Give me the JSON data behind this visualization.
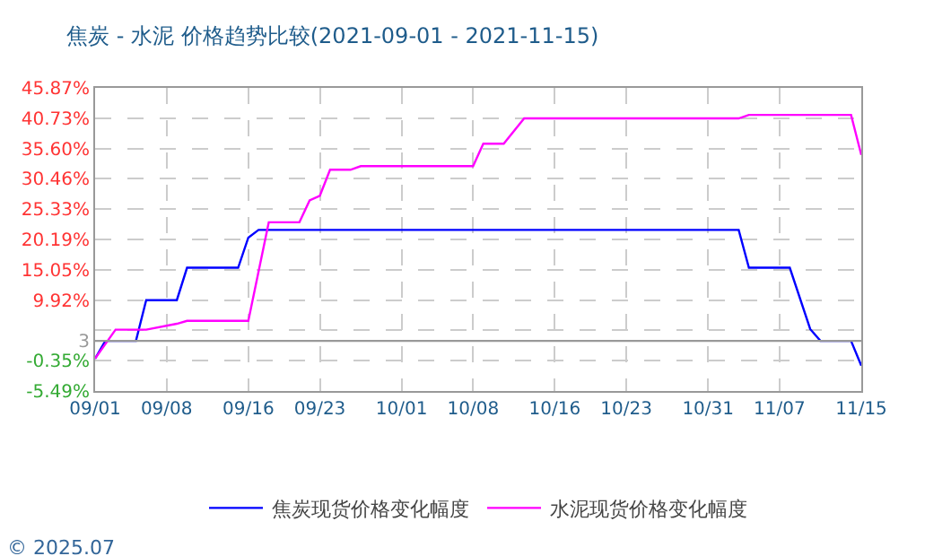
{
  "chart_data": {
    "type": "line",
    "title": "焦炭 - 水泥 价格趋势比较(2021-09-01 - 2021-11-15)",
    "series": [
      {
        "name": "焦炭现货价格变化幅度",
        "color": "#0000ff",
        "x": [
          "2021-09-01",
          "2021-09-02",
          "2021-09-05",
          "2021-09-06",
          "2021-09-09",
          "2021-09-10",
          "2021-09-15",
          "2021-09-16",
          "2021-09-17",
          "2021-11-03",
          "2021-11-04",
          "2021-11-08",
          "2021-11-10",
          "2021-11-11",
          "2021-11-14",
          "2021-11-15"
        ],
        "values": [
          0,
          3,
          3,
          9.9,
          9.9,
          15.4,
          15.4,
          20.5,
          21.8,
          21.8,
          15.4,
          15.4,
          5,
          3,
          3,
          -1.2
        ]
      },
      {
        "name": "水泥现货价格变化幅度",
        "color": "#ff00ff",
        "x": [
          "2021-09-01",
          "2021-09-03",
          "2021-09-06",
          "2021-09-09",
          "2021-09-10",
          "2021-09-16",
          "2021-09-18",
          "2021-09-21",
          "2021-09-22",
          "2021-09-23",
          "2021-09-24",
          "2021-09-26",
          "2021-09-27",
          "2021-10-08",
          "2021-10-09",
          "2021-10-11",
          "2021-10-13",
          "2021-11-03",
          "2021-11-04",
          "2021-11-14",
          "2021-11-15"
        ],
        "values": [
          0,
          4.9,
          4.9,
          5.9,
          6.4,
          6.4,
          23.1,
          23.1,
          26.8,
          27.6,
          32,
          32,
          32.6,
          32.6,
          36.4,
          36.4,
          40.7,
          40.7,
          41.3,
          41.3,
          34.5
        ]
      }
    ],
    "xlim": [
      "2021-09-01",
      "2021-11-15"
    ],
    "xticks": [
      {
        "value": "2021-09-01",
        "label": "09/01"
      },
      {
        "value": "2021-09-08",
        "label": "09/08"
      },
      {
        "value": "2021-09-16",
        "label": "09/16"
      },
      {
        "value": "2021-09-23",
        "label": "09/23"
      },
      {
        "value": "2021-10-01",
        "label": "10/01"
      },
      {
        "value": "2021-10-08",
        "label": "10/08"
      },
      {
        "value": "2021-10-16",
        "label": "10/16"
      },
      {
        "value": "2021-10-23",
        "label": "10/23"
      },
      {
        "value": "2021-10-31",
        "label": "10/31"
      },
      {
        "value": "2021-11-07",
        "label": "11/07"
      },
      {
        "value": "2021-11-15",
        "label": "11/15"
      }
    ],
    "ylim": [
      -5.49,
      45.87
    ],
    "yticks": [
      {
        "value": -5.49,
        "label": "-5.49%"
      },
      {
        "value": -0.35,
        "label": "-0.35%"
      },
      3,
      {
        "value": 4.78,
        "label": null
      },
      {
        "value": 9.92,
        "label": "9.92%"
      },
      {
        "value": 15.05,
        "label": "15.05%"
      },
      {
        "value": 20.19,
        "label": "20.19%"
      },
      {
        "value": 25.33,
        "label": "25.33%"
      },
      {
        "value": 30.46,
        "label": "30.46%"
      },
      {
        "value": 35.6,
        "label": "35.60%"
      },
      {
        "value": 40.73,
        "label": "40.73%"
      },
      {
        "value": 45.87,
        "label": "45.87%"
      }
    ],
    "ref_lines": [
      {
        "axis": "y",
        "value": 3,
        "color": "#999999"
      }
    ],
    "grid": true,
    "legend": "bottom",
    "marker": "none",
    "line_style": "solid",
    "annotations": [
      "© 2025.07"
    ]
  }
}
